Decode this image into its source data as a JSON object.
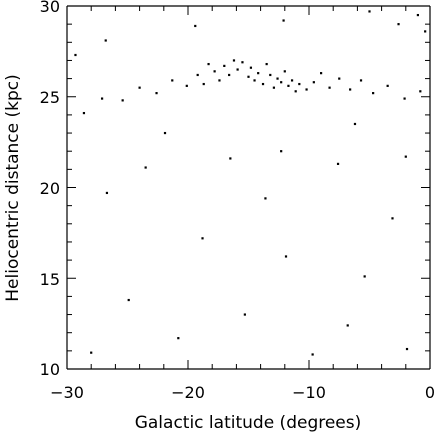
{
  "chart_data": {
    "type": "scatter",
    "title": "",
    "xlabel": "Galactic latitude (degrees)",
    "ylabel": "Heliocentric distance (kpc)",
    "xlim": [
      -30,
      0
    ],
    "ylim": [
      10,
      30
    ],
    "xticks_major": [
      -30,
      -20,
      -10,
      0
    ],
    "yticks_major": [
      10,
      15,
      20,
      25,
      30
    ],
    "x_tick_labels": [
      "−30",
      "−20",
      "−10",
      "0"
    ],
    "y_tick_labels": [
      "10",
      "15",
      "20",
      "25",
      "30"
    ],
    "xticks_minor_step": 2,
    "yticks_minor_step": 1,
    "grid": false,
    "legend": "none",
    "marker_color": "#000000",
    "series": [
      {
        "values": [
          {
            "x": -15.0,
            "y": 26.1
          },
          {
            "x": -14.8,
            "y": 26.6
          },
          {
            "x": -14.5,
            "y": 25.9
          },
          {
            "x": -14.2,
            "y": 26.3
          },
          {
            "x": -13.8,
            "y": 25.7
          },
          {
            "x": -13.5,
            "y": 26.8
          },
          {
            "x": -13.2,
            "y": 26.2
          },
          {
            "x": -12.9,
            "y": 25.5
          },
          {
            "x": -12.6,
            "y": 26.0
          },
          {
            "x": -12.3,
            "y": 25.8
          },
          {
            "x": -12.0,
            "y": 26.4
          },
          {
            "x": -11.7,
            "y": 25.6
          },
          {
            "x": -11.4,
            "y": 25.9
          },
          {
            "x": -11.1,
            "y": 25.3
          },
          {
            "x": -10.8,
            "y": 25.7
          },
          {
            "x": -15.5,
            "y": 26.9
          },
          {
            "x": -15.9,
            "y": 26.5
          },
          {
            "x": -16.2,
            "y": 27.0
          },
          {
            "x": -16.6,
            "y": 26.2
          },
          {
            "x": -17.0,
            "y": 26.7
          },
          {
            "x": -17.4,
            "y": 25.9
          },
          {
            "x": -17.8,
            "y": 26.4
          },
          {
            "x": -18.3,
            "y": 26.8
          },
          {
            "x": -18.7,
            "y": 25.7
          },
          {
            "x": -19.2,
            "y": 26.2
          },
          {
            "x": -20.1,
            "y": 25.6
          },
          {
            "x": -21.3,
            "y": 25.9
          },
          {
            "x": -22.6,
            "y": 25.2
          },
          {
            "x": -24.0,
            "y": 25.5
          },
          {
            "x": -25.4,
            "y": 24.8
          },
          {
            "x": -27.1,
            "y": 24.9
          },
          {
            "x": -28.6,
            "y": 24.1
          },
          {
            "x": -10.2,
            "y": 25.4
          },
          {
            "x": -9.6,
            "y": 25.8
          },
          {
            "x": -9.0,
            "y": 26.3
          },
          {
            "x": -8.3,
            "y": 25.5
          },
          {
            "x": -7.5,
            "y": 26.0
          },
          {
            "x": -6.6,
            "y": 25.4
          },
          {
            "x": -5.7,
            "y": 25.9
          },
          {
            "x": -4.7,
            "y": 25.2
          },
          {
            "x": -3.5,
            "y": 25.6
          },
          {
            "x": -2.1,
            "y": 24.9
          },
          {
            "x": -0.8,
            "y": 25.3
          },
          {
            "x": -16.5,
            "y": 21.6
          },
          {
            "x": -12.3,
            "y": 22.0
          },
          {
            "x": -7.6,
            "y": 21.3
          },
          {
            "x": -2.0,
            "y": 21.7
          },
          {
            "x": -23.5,
            "y": 21.1
          },
          {
            "x": -26.7,
            "y": 19.7
          },
          {
            "x": -18.8,
            "y": 17.2
          },
          {
            "x": -11.9,
            "y": 16.2
          },
          {
            "x": -5.4,
            "y": 15.1
          },
          {
            "x": -24.9,
            "y": 13.8
          },
          {
            "x": -15.3,
            "y": 13.0
          },
          {
            "x": -6.8,
            "y": 12.4
          },
          {
            "x": -1.9,
            "y": 11.1
          },
          {
            "x": -28.0,
            "y": 10.9
          },
          {
            "x": -20.8,
            "y": 11.7
          },
          {
            "x": -9.7,
            "y": 10.8
          },
          {
            "x": -3.1,
            "y": 18.3
          },
          {
            "x": -13.6,
            "y": 19.4
          },
          {
            "x": -21.9,
            "y": 23.0
          },
          {
            "x": -6.2,
            "y": 23.5
          },
          {
            "x": -1.0,
            "y": 29.5
          },
          {
            "x": -0.4,
            "y": 28.6
          },
          {
            "x": -2.6,
            "y": 29.0
          },
          {
            "x": -5.0,
            "y": 29.7
          },
          {
            "x": -12.1,
            "y": 29.2
          },
          {
            "x": -19.4,
            "y": 28.9
          },
          {
            "x": -26.8,
            "y": 28.1
          },
          {
            "x": -29.3,
            "y": 27.3
          }
        ]
      }
    ]
  }
}
